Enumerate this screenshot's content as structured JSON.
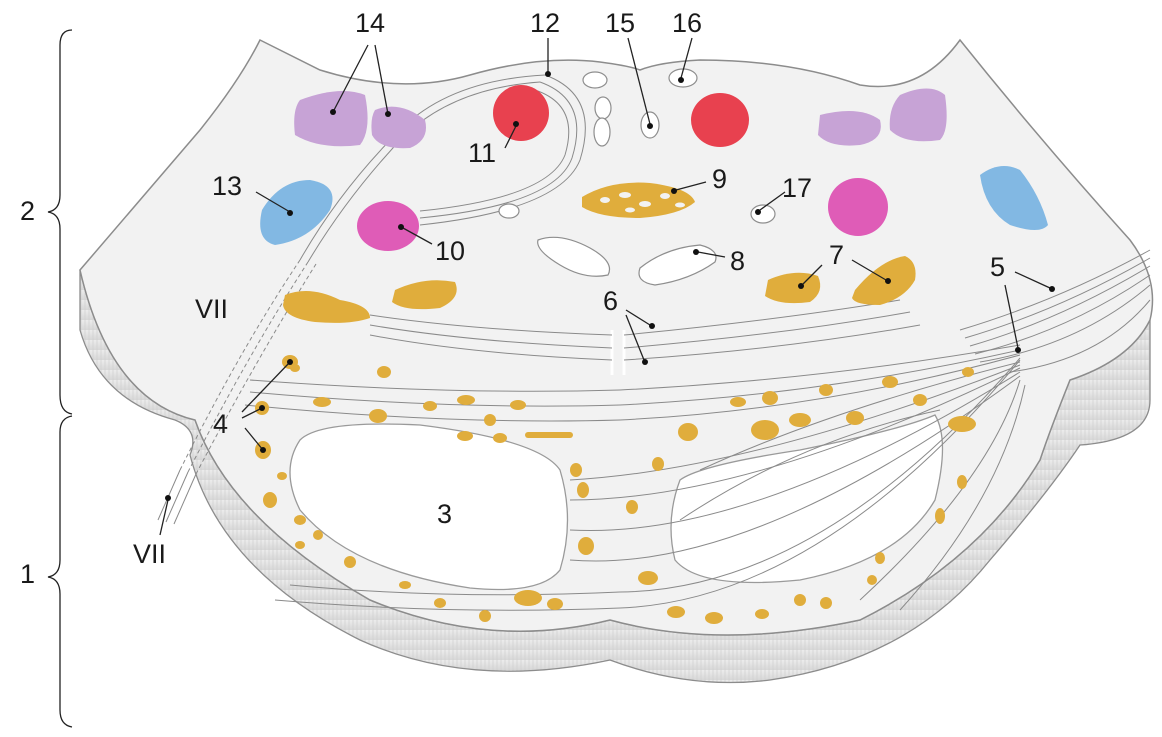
{
  "figure": {
    "labels": {
      "l1": "1",
      "l2": "2",
      "l3": "3",
      "l4": "4",
      "l5": "5",
      "l6": "6",
      "l7": "7",
      "l8": "8",
      "l9": "9",
      "l10": "10",
      "l11": "11",
      "l12": "12",
      "l13": "13",
      "l14": "14",
      "l15": "15",
      "l16": "16",
      "l17": "17",
      "vii_upper": "VII",
      "vii_lower": "VII"
    },
    "colors": {
      "tissue": "#f2f2f2",
      "tissue_side": "#e4e4e4",
      "outline": "#8c8c8c",
      "purple_nucleus": "#c7a3d6",
      "red_nucleus": "#e8414f",
      "magenta_nucleus": "#df5cb7",
      "blue_nucleus": "#82b8e3",
      "yellow_nucleus": "#e0ad3c"
    }
  }
}
